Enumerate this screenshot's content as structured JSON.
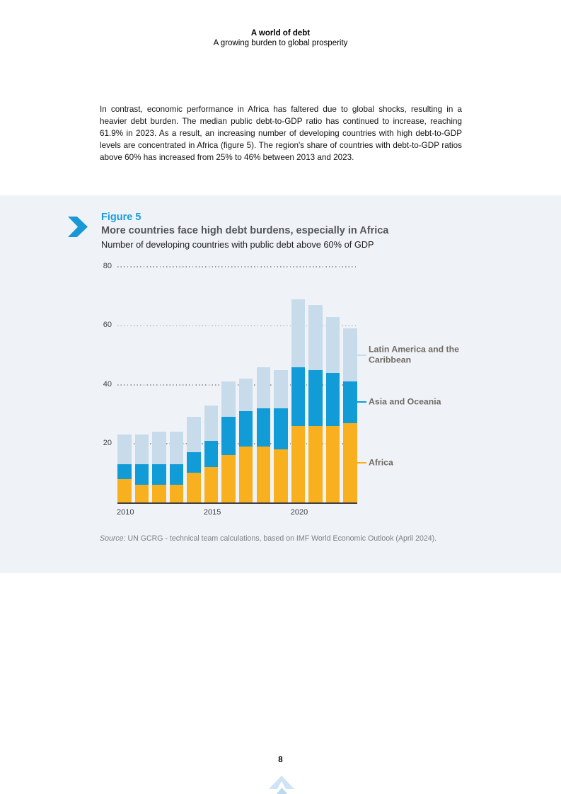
{
  "header": {
    "title": "A world of debt",
    "subtitle": "A growing burden to global prosperity"
  },
  "intro": {
    "text": "In contrast, economic performance in Africa has faltered due to global shocks, resulting in a heavier debt burden. The median public debt-to-GDP ratio has continued to increase, reaching 61.9% in 2023. As a result, an increasing number of developing countries with high debt-to-GDP levels are concentrated in Africa (figure 5). The region's share of countries with debt-to-GDP ratios above 60% has increased from 25% to 46% between 2013 and 2023."
  },
  "figure": {
    "label": "Figure 5",
    "title": "More countries face high debt burdens, especially in Africa",
    "subtitle": "Number of developing countries with public debt above 60% of GDP",
    "accent_color": "#1b9cd9",
    "band_background": "#eff3f8",
    "source_prefix": "Source:",
    "source_rest": " UN GCRG - technical team calculations, based on IMF World Economic Outlook (April 2024)."
  },
  "chart_data": {
    "type": "bar",
    "stacked": true,
    "title": "Number of developing countries with public debt above 60% of GDP",
    "categories": [
      2010,
      2011,
      2012,
      2013,
      2014,
      2015,
      2016,
      2017,
      2018,
      2019,
      2020,
      2021,
      2022,
      2023
    ],
    "series": [
      {
        "name": "Africa",
        "color": "#f9b01e",
        "values": [
          8,
          6,
          6,
          6,
          10,
          12,
          16,
          19,
          19,
          18,
          26,
          26,
          26,
          27
        ]
      },
      {
        "name": "Asia and Oceania",
        "color": "#119bd7",
        "values": [
          5,
          7,
          7,
          7,
          7,
          9,
          13,
          12,
          13,
          14,
          20,
          19,
          18,
          14
        ]
      },
      {
        "name": "Latin America and the Caribbean",
        "color": "#c8dbea",
        "values": [
          10,
          10,
          11,
          11,
          12,
          12,
          12,
          11,
          14,
          13,
          23,
          22,
          19,
          18
        ]
      }
    ],
    "totals": [
      23,
      23,
      24,
      24,
      29,
      33,
      41,
      42,
      46,
      45,
      69,
      67,
      63,
      59
    ],
    "xlabel": "",
    "ylabel": "",
    "ylim": [
      0,
      80
    ],
    "yticks": [
      20,
      40,
      60,
      80
    ],
    "xticks": [
      2010,
      2015,
      2020
    ],
    "grid": "dotted-horizontal",
    "legend_position": "right"
  },
  "footer": {
    "page_number": "8"
  }
}
